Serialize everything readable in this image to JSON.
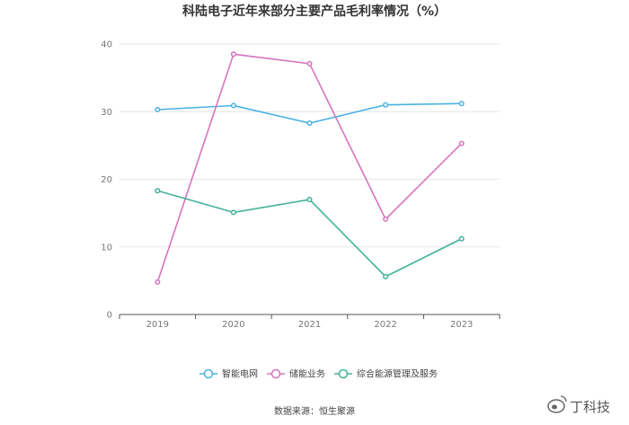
{
  "chart_data": {
    "type": "line",
    "title": "科陆电子近年来部分主要产品毛利率情况（%）",
    "categories": [
      "2019",
      "2020",
      "2021",
      "2022",
      "2023"
    ],
    "ylim": [
      0,
      40
    ],
    "yticks": [
      0,
      10,
      20,
      30,
      40
    ],
    "grid": true,
    "legend": "bottom",
    "series": [
      {
        "name": "智能电网",
        "color": "#4bb2e3",
        "values": [
          30.3,
          30.9,
          28.3,
          31.0,
          31.2
        ]
      },
      {
        "name": "储能业务",
        "color": "#d774be",
        "values": [
          4.8,
          38.5,
          37.1,
          14.1,
          25.3
        ]
      },
      {
        "name": "综合能源管理及服务",
        "color": "#42b29a",
        "values": [
          18.3,
          15.1,
          17.0,
          5.6,
          11.2
        ]
      }
    ]
  },
  "source": "数据来源：恒生聚源",
  "watermark": "丁科技"
}
